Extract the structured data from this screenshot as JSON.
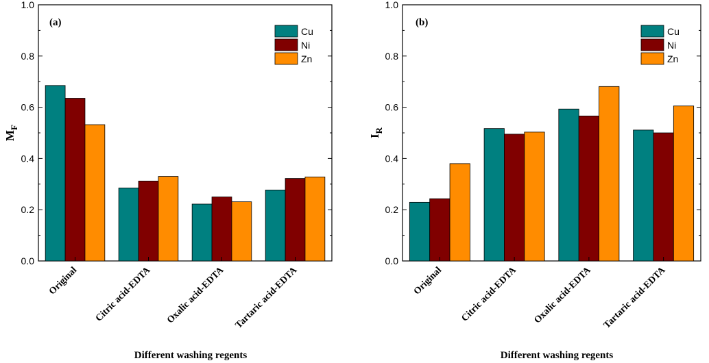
{
  "chart_data": [
    {
      "type": "bar",
      "panel_label": "(a)",
      "ylabel_main": "M",
      "ylabel_sub": "F",
      "xlabel": "Different washing regents",
      "ylim": [
        0,
        1.0
      ],
      "yticks": [
        "0.0",
        "0.2",
        "0.4",
        "0.6",
        "0.8",
        "1.0"
      ],
      "legend_position": "top-right",
      "categories": [
        "Original",
        "Citric acid-EDTA",
        "Oxalic acid-EDTA",
        "Tartaric acid-EDTA"
      ],
      "series": [
        {
          "name": "Cu",
          "color": "#008080",
          "values": [
            0.685,
            0.285,
            0.222,
            0.277
          ]
        },
        {
          "name": "Ni",
          "color": "#800000",
          "values": [
            0.635,
            0.312,
            0.25,
            0.322
          ]
        },
        {
          "name": "Zn",
          "color": "#FF8C00",
          "values": [
            0.532,
            0.33,
            0.231,
            0.328
          ]
        }
      ]
    },
    {
      "type": "bar",
      "panel_label": "(b)",
      "ylabel_main": "I",
      "ylabel_sub": "R",
      "xlabel": "Different washing regents",
      "ylim": [
        0,
        1.0
      ],
      "yticks": [
        "0.0",
        "0.2",
        "0.4",
        "0.6",
        "0.8",
        "1.0"
      ],
      "legend_position": "top-right",
      "categories": [
        "Original",
        "Citric acid-EDTA",
        "Oxalic acid-EDTA",
        "Tartaric acid-EDTA"
      ],
      "series": [
        {
          "name": "Cu",
          "color": "#008080",
          "values": [
            0.229,
            0.517,
            0.593,
            0.511
          ]
        },
        {
          "name": "Ni",
          "color": "#800000",
          "values": [
            0.243,
            0.495,
            0.566,
            0.5
          ]
        },
        {
          "name": "Zn",
          "color": "#FF8C00",
          "values": [
            0.38,
            0.503,
            0.681,
            0.605
          ]
        }
      ]
    }
  ]
}
